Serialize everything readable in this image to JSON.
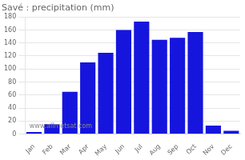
{
  "chart_data": {
    "type": "bar",
    "title": "Savé : precipitation (mm)",
    "categories": [
      "Jan",
      "Feb",
      "Mar",
      "Apr",
      "May",
      "Jun",
      "Jul",
      "Aug",
      "Sep",
      "Oct",
      "Nov",
      "Dec"
    ],
    "values": [
      3,
      15,
      65,
      110,
      125,
      160,
      173,
      145,
      148,
      157,
      13,
      5
    ],
    "color": "#1515dd",
    "ylim": [
      0,
      180
    ],
    "yticks": [
      0,
      20,
      40,
      60,
      80,
      100,
      120,
      140,
      160,
      180
    ],
    "grid": true,
    "annotation": "www.allmetsat.com"
  }
}
